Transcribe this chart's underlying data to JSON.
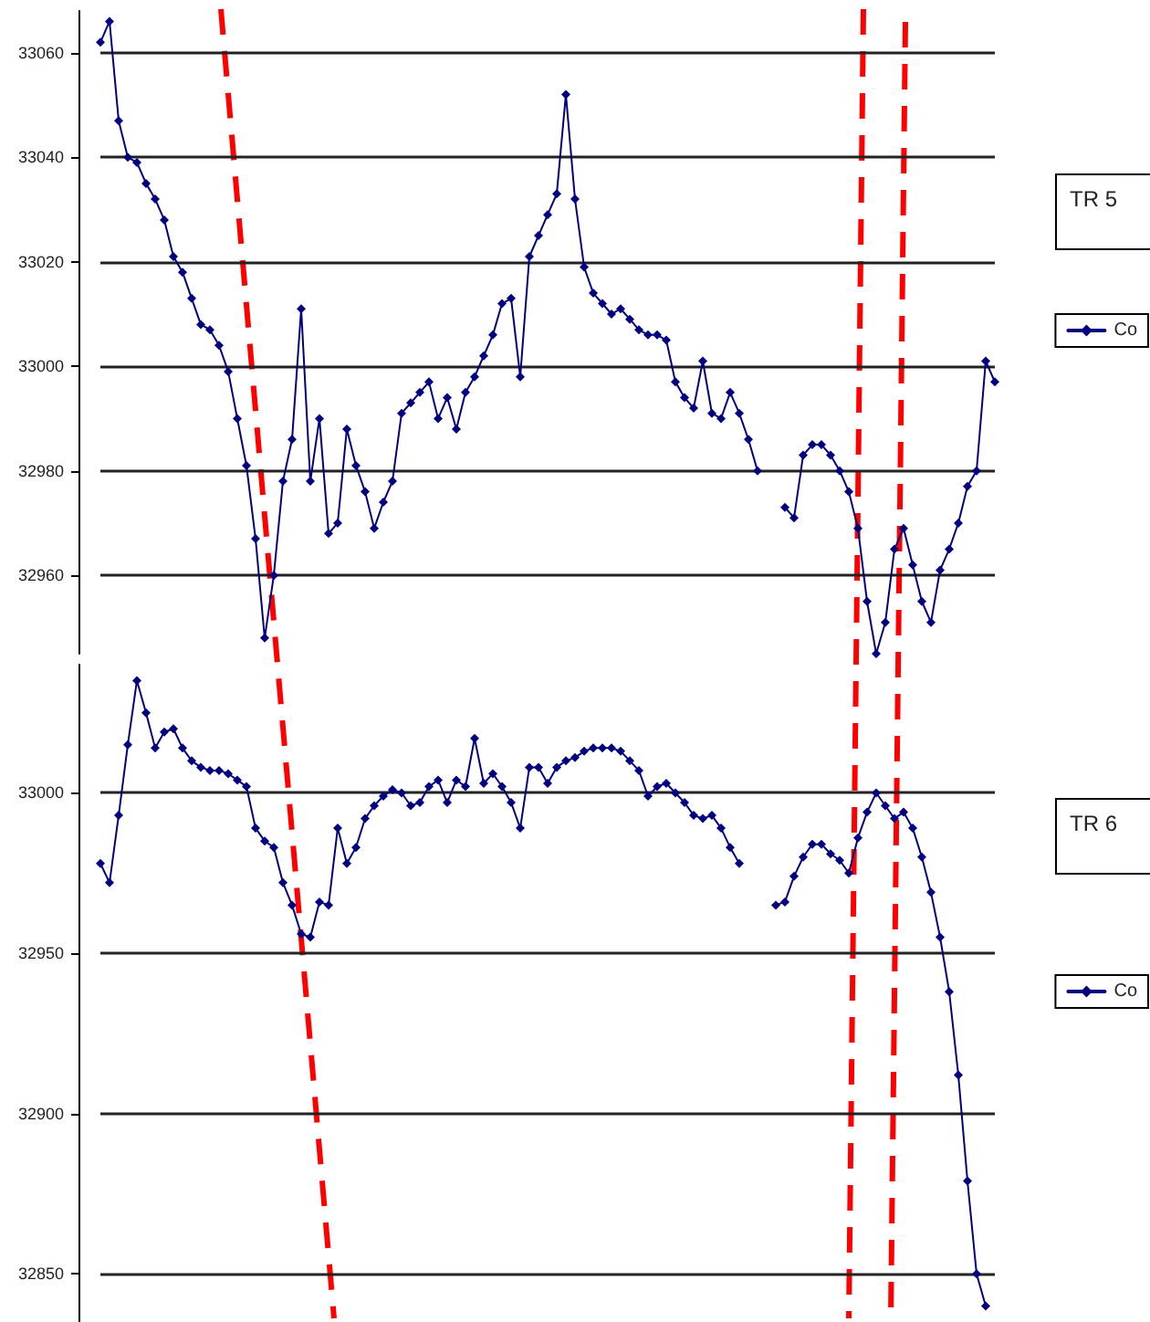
{
  "chart_data": [
    {
      "type": "line",
      "annotations": [
        "TR 5"
      ],
      "tick_labels": "y",
      "grid": "y",
      "legend": "right",
      "marker": "diamond",
      "line_style": "solid",
      "categories": [
        null,
        null,
        null,
        null,
        null,
        null,
        null,
        null,
        null,
        null,
        null,
        null,
        null,
        null,
        null,
        null,
        null,
        null,
        null,
        null,
        null,
        null,
        null,
        null,
        null,
        null,
        null,
        null,
        null,
        null,
        null,
        null,
        null,
        null,
        null,
        null,
        null,
        null,
        null,
        null,
        null,
        null,
        null,
        null,
        null,
        null,
        null,
        null,
        null,
        null,
        null,
        null,
        null,
        null,
        null,
        null,
        null,
        null,
        null,
        null,
        null,
        null,
        null,
        null,
        null,
        null,
        null,
        null,
        null,
        null,
        null,
        null,
        null,
        null,
        null,
        null,
        null,
        null,
        null,
        null,
        null,
        null,
        null,
        null,
        null,
        null,
        null,
        null,
        null,
        null,
        null,
        null,
        null,
        null,
        null,
        null,
        null,
        null,
        null
      ],
      "ylim": [
        32945,
        33068
      ],
      "yticks": [
        32960,
        32980,
        33000,
        33020,
        33040,
        33060
      ],
      "series": [
        {
          "name": "Co",
          "color": "#000080",
          "values": [
            33062,
            33066,
            33047,
            33040,
            33039,
            33035,
            33032,
            33028,
            33021,
            33018,
            33013,
            33008,
            33007,
            33004,
            32999,
            32990,
            32981,
            32967,
            32948,
            32960,
            32978,
            32986,
            33011,
            32978,
            32990,
            32968,
            32970,
            32988,
            32981,
            32976,
            32969,
            32974,
            32978,
            32991,
            32993,
            32995,
            32997,
            32990,
            32994,
            32988,
            32995,
            32998,
            33002,
            33006,
            33012,
            33013,
            32998,
            33021,
            33025,
            33029,
            33033,
            33052,
            33032,
            33019,
            33014,
            33012,
            33010,
            33011,
            33009,
            33007,
            33006,
            33006,
            33005,
            32997,
            32994,
            32992,
            33001,
            32991,
            32990,
            32995,
            32991,
            32986,
            32980,
            null,
            null,
            null,
            null,
            null,
            null,
            null,
            null,
            null,
            null,
            null,
            null,
            null,
            null,
            null,
            null,
            null,
            null,
            null,
            null,
            null,
            null,
            null,
            null,
            null,
            null
          ]
        },
        {
          "color": "#000080",
          "values": [
            null,
            null,
            null,
            null,
            null,
            null,
            null,
            null,
            null,
            null,
            null,
            null,
            null,
            null,
            null,
            null,
            null,
            null,
            null,
            null,
            null,
            null,
            null,
            null,
            null,
            null,
            null,
            null,
            null,
            null,
            null,
            null,
            null,
            null,
            null,
            null,
            null,
            null,
            null,
            null,
            null,
            null,
            null,
            null,
            null,
            null,
            null,
            null,
            null,
            null,
            null,
            null,
            null,
            null,
            null,
            null,
            null,
            null,
            null,
            null,
            null,
            null,
            null,
            null,
            null,
            null,
            null,
            null,
            null,
            null,
            null,
            null,
            null,
            null,
            null,
            32973,
            32971,
            32983,
            32985,
            32985,
            32983,
            32980,
            32976,
            32969,
            32955,
            32945,
            32951,
            32965,
            32969,
            32962,
            32955,
            32951,
            32961,
            32965,
            32970,
            32977,
            32980,
            33001,
            32997
          ]
        }
      ]
    },
    {
      "type": "line",
      "annotations": [
        "TR 6"
      ],
      "tick_labels": "y",
      "grid": "y",
      "legend": "right",
      "marker": "diamond",
      "line_style": "solid",
      "categories": [
        null,
        null,
        null,
        null,
        null,
        null,
        null,
        null,
        null,
        null,
        null,
        null,
        null,
        null,
        null,
        null,
        null,
        null,
        null,
        null,
        null,
        null,
        null,
        null,
        null,
        null,
        null,
        null,
        null,
        null,
        null,
        null,
        null,
        null,
        null,
        null,
        null,
        null,
        null,
        null,
        null,
        null,
        null,
        null,
        null,
        null,
        null,
        null,
        null,
        null,
        null,
        null,
        null,
        null,
        null,
        null,
        null,
        null,
        null,
        null,
        null,
        null,
        null,
        null,
        null,
        null,
        null,
        null,
        null,
        null,
        null,
        null,
        null,
        null,
        null,
        null,
        null,
        null,
        null,
        null,
        null,
        null,
        null,
        null,
        null,
        null,
        null,
        null,
        null,
        null,
        null,
        null,
        null,
        null,
        null,
        null,
        null,
        null,
        null
      ],
      "ylim": [
        32835,
        33040
      ],
      "yticks": [
        32850,
        32900,
        32950,
        33000
      ],
      "series": [
        {
          "name": "Co",
          "color": "#000080",
          "values": [
            32978,
            32972,
            32993,
            33015,
            33035,
            33025,
            33014,
            33019,
            33020,
            33014,
            33010,
            33008,
            33007,
            33007,
            33006,
            33004,
            33002,
            32989,
            32985,
            32983,
            32972,
            32965,
            32956,
            32955,
            32966,
            32965,
            32989,
            32978,
            32983,
            32992,
            32996,
            32999,
            33001,
            33000,
            32996,
            32997,
            33002,
            33004,
            32997,
            33004,
            33002,
            33017,
            33003,
            33006,
            33002,
            32997,
            32989,
            33008,
            33008,
            33003,
            33008,
            33010,
            33011,
            33013,
            33014,
            33014,
            33014,
            33013,
            33010,
            33007,
            32999,
            33002,
            33003,
            33000,
            32997,
            32993,
            32992,
            32993,
            32989,
            32983,
            32978,
            null,
            null,
            null,
            null,
            null,
            null,
            null,
            null,
            null,
            null,
            null,
            null,
            null,
            null,
            null,
            null,
            null,
            null,
            null,
            null,
            null,
            null,
            null,
            null,
            null,
            null,
            null,
            null
          ]
        },
        {
          "color": "#000080",
          "values": [
            null,
            null,
            null,
            null,
            null,
            null,
            null,
            null,
            null,
            null,
            null,
            null,
            null,
            null,
            null,
            null,
            null,
            null,
            null,
            null,
            null,
            null,
            null,
            null,
            null,
            null,
            null,
            null,
            null,
            null,
            null,
            null,
            null,
            null,
            null,
            null,
            null,
            null,
            null,
            null,
            null,
            null,
            null,
            null,
            null,
            null,
            null,
            null,
            null,
            null,
            null,
            null,
            null,
            null,
            null,
            null,
            null,
            null,
            null,
            null,
            null,
            null,
            null,
            null,
            null,
            null,
            null,
            null,
            null,
            null,
            null,
            null,
            null,
            null,
            32965,
            32966,
            32974,
            32980,
            32984,
            32984,
            32981,
            32979,
            32975,
            32986,
            32994,
            33000,
            32996,
            32992,
            32994,
            32989,
            32980,
            32969,
            32955,
            32938,
            32912,
            32879,
            32850,
            32840,
            null
          ]
        }
      ]
    }
  ]
}
